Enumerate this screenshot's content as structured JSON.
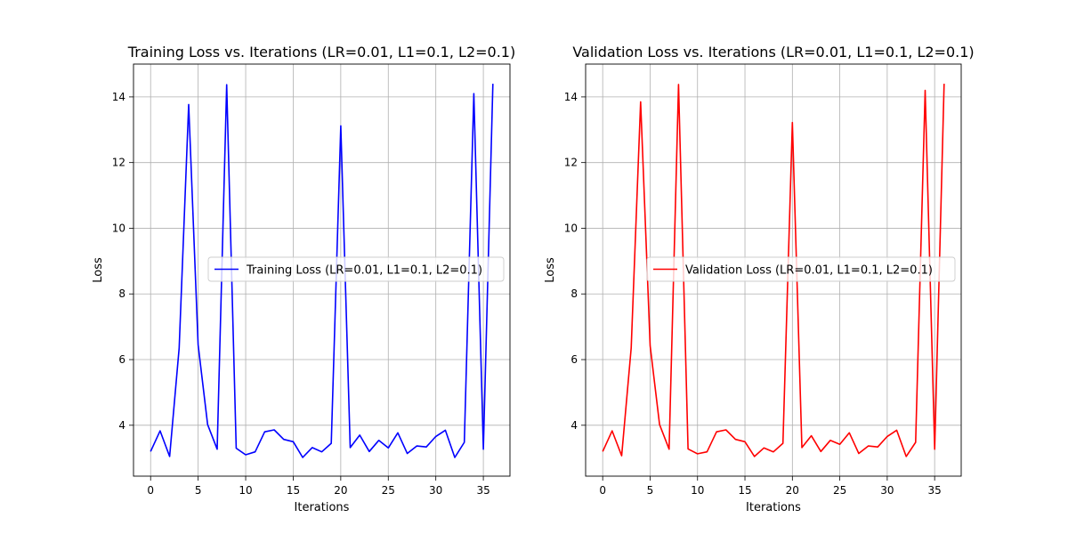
{
  "chart_data": [
    {
      "type": "line",
      "title": "Training Loss vs. Iterations (LR=0.01, L1=0.1, L2=0.1)",
      "xlabel": "Iterations",
      "ylabel": "Loss",
      "xlim": [
        -1.8,
        37.8
      ],
      "ylim": [
        2.45,
        15.0
      ],
      "xticks": [
        0,
        5,
        10,
        15,
        20,
        25,
        30,
        35
      ],
      "yticks": [
        4,
        6,
        8,
        10,
        12,
        14
      ],
      "grid": true,
      "legend_position": "center-right",
      "series": [
        {
          "name": "Training Loss (LR=0.01, L1=0.1, L2=0.1)",
          "color": "#0000ff",
          "x": [
            0,
            1,
            2,
            3,
            4,
            5,
            6,
            7,
            8,
            9,
            10,
            11,
            12,
            13,
            14,
            15,
            16,
            17,
            18,
            19,
            20,
            21,
            22,
            23,
            24,
            25,
            26,
            27,
            28,
            29,
            30,
            31,
            32,
            33,
            34,
            35,
            36
          ],
          "y": [
            3.2,
            3.83,
            3.05,
            6.35,
            13.77,
            6.45,
            4.02,
            3.27,
            14.37,
            3.3,
            3.1,
            3.19,
            3.8,
            3.86,
            3.57,
            3.5,
            3.02,
            3.32,
            3.19,
            3.45,
            13.12,
            3.32,
            3.7,
            3.2,
            3.54,
            3.31,
            3.77,
            3.14,
            3.37,
            3.34,
            3.66,
            3.85,
            3.02,
            3.48,
            14.1,
            3.27,
            14.4
          ]
        }
      ]
    },
    {
      "type": "line",
      "title": "Validation Loss vs. Iterations (LR=0.01, L1=0.1, L2=0.1)",
      "xlabel": "Iterations",
      "ylabel": "Loss",
      "xlim": [
        -1.8,
        37.8
      ],
      "ylim": [
        2.45,
        15.0
      ],
      "xticks": [
        0,
        5,
        10,
        15,
        20,
        25,
        30,
        35
      ],
      "yticks": [
        4,
        6,
        8,
        10,
        12,
        14
      ],
      "grid": true,
      "legend_position": "center-right",
      "series": [
        {
          "name": "Validation Loss (LR=0.01, L1=0.1, L2=0.1)",
          "color": "#ff0000",
          "x": [
            0,
            1,
            2,
            3,
            4,
            5,
            6,
            7,
            8,
            9,
            10,
            11,
            12,
            13,
            14,
            15,
            16,
            17,
            18,
            19,
            20,
            21,
            22,
            23,
            24,
            25,
            26,
            27,
            28,
            29,
            30,
            31,
            32,
            33,
            34,
            35,
            36
          ],
          "y": [
            3.2,
            3.83,
            3.07,
            6.35,
            13.85,
            6.42,
            4.02,
            3.27,
            14.38,
            3.28,
            3.13,
            3.19,
            3.8,
            3.86,
            3.57,
            3.5,
            3.05,
            3.31,
            3.19,
            3.45,
            13.22,
            3.32,
            3.68,
            3.2,
            3.54,
            3.42,
            3.77,
            3.14,
            3.37,
            3.34,
            3.66,
            3.85,
            3.05,
            3.48,
            14.2,
            3.27,
            14.4
          ]
        }
      ]
    }
  ]
}
